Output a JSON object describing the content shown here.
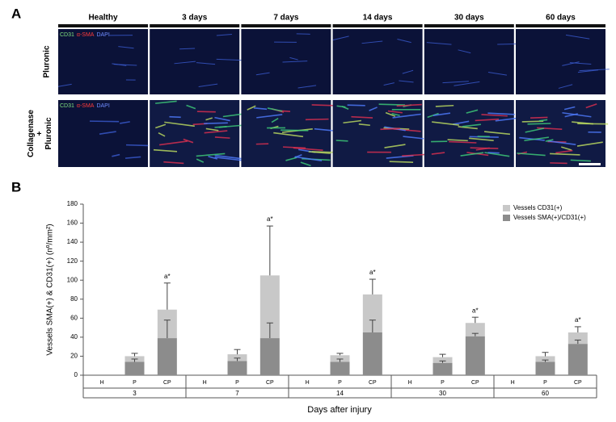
{
  "panel_a": {
    "label": "A",
    "columns": [
      "Healthy",
      "3 days",
      "7 days",
      "14 days",
      "30 days",
      "60 days"
    ],
    "rows": [
      "Pluronic",
      "Collagenase\n+\nPluronic"
    ],
    "stain_labels": [
      {
        "text": "CD31",
        "color": "#7fe07f"
      },
      {
        "text": "α-SMA",
        "color": "#ff3b3b"
      },
      {
        "text": "DAPI",
        "color": "#6f8cff"
      }
    ]
  },
  "chart_data": {
    "type": "bar",
    "label": "B",
    "ylabel": "Vessels SMA(+) & CD31(+) (nº/mm²)",
    "xlabel": "Days after injury",
    "categories": [
      "H",
      "P",
      "CP",
      "H",
      "P",
      "CP",
      "H",
      "P",
      "CP",
      "H",
      "P",
      "CP",
      "H",
      "P",
      "CP"
    ],
    "groups": [
      "3",
      "7",
      "14",
      "30",
      "60"
    ],
    "stacked": true,
    "series": [
      {
        "name": "Vessels SMA(+)/CD31(+)",
        "color": "#8c8c8c",
        "values": [
          0,
          14,
          39,
          0,
          15,
          39,
          0,
          14,
          45,
          0,
          13,
          41,
          0,
          14,
          33
        ],
        "errors": [
          0,
          3,
          19,
          0,
          3,
          16,
          0,
          3,
          13,
          0,
          2,
          3,
          0,
          2,
          4
        ]
      },
      {
        "name": "Vessels CD31(+)",
        "color": "#c8c8c8",
        "values": [
          0,
          6,
          30,
          0,
          7,
          66,
          0,
          7,
          40,
          0,
          6,
          14,
          0,
          6,
          12
        ],
        "errors": [
          0,
          3,
          28,
          0,
          5,
          52,
          0,
          2,
          16,
          0,
          3,
          6,
          0,
          4,
          6
        ]
      }
    ],
    "annotations": [
      null,
      null,
      "a*",
      null,
      null,
      "a*",
      null,
      null,
      "a*",
      null,
      null,
      "a*",
      null,
      null,
      "a*"
    ],
    "ylim": [
      0,
      180
    ],
    "yticks": [
      0,
      20,
      40,
      60,
      80,
      100,
      120,
      140,
      160,
      180
    ],
    "legend": "top-right"
  }
}
